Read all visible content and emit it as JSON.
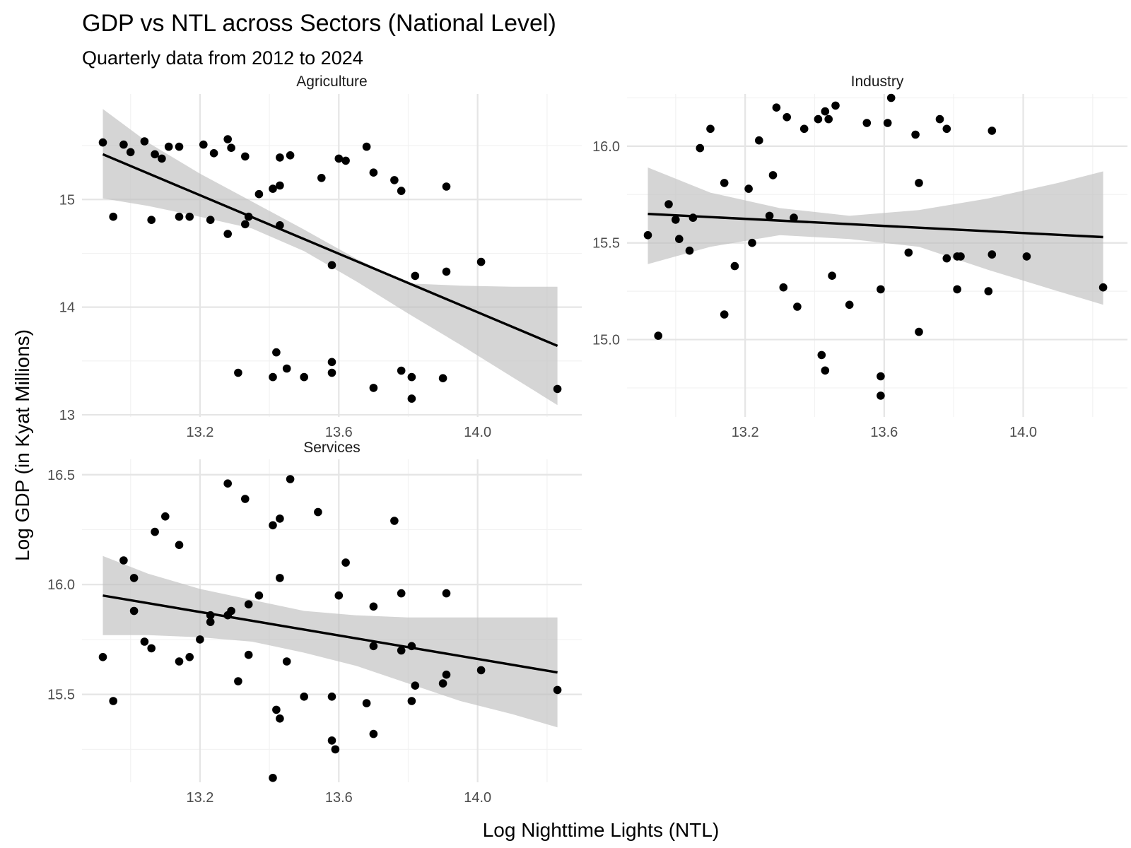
{
  "chart_data": {
    "type": "scatter",
    "title": "GDP vs NTL across Sectors (National Level)",
    "subtitle": "Quarterly data from 2012 to 2024",
    "xlabel": "Log Nighttime Lights (NTL)",
    "ylabel": "Log GDP (in Kyat Millions)",
    "grid": true,
    "xlim": [
      12.86,
      14.3
    ],
    "xticks": [
      "13.2",
      "13.6",
      "14.0"
    ],
    "panels": [
      {
        "name": "Agriculture",
        "ylim": [
          12.98,
          15.98
        ],
        "yticks": [
          "13",
          "14",
          "15"
        ],
        "fit": {
          "x0": 12.92,
          "y0": 15.42,
          "x1": 14.23,
          "y1": 13.64
        },
        "band": {
          "x": [
            12.92,
            13.05,
            13.2,
            13.35,
            13.5,
            13.65,
            13.8,
            13.95,
            14.1,
            14.23
          ],
          "upper": [
            15.84,
            15.53,
            15.24,
            14.98,
            14.72,
            14.45,
            14.22,
            14.2,
            14.19,
            14.19
          ],
          "lower": [
            15.01,
            14.94,
            14.84,
            14.73,
            14.52,
            14.24,
            13.94,
            13.65,
            13.35,
            13.09
          ]
        },
        "x": [
          12.92,
          12.98,
          13.0,
          13.04,
          13.07,
          13.09,
          13.11,
          13.14,
          13.21,
          13.24,
          13.28,
          13.29,
          13.33,
          13.37,
          13.41,
          13.43,
          13.43,
          13.46,
          13.55,
          13.6,
          13.62,
          13.68,
          13.7,
          13.76,
          13.78,
          13.91,
          12.95,
          13.06,
          13.14,
          13.17,
          13.23,
          13.28,
          13.33,
          13.34,
          13.43,
          13.58,
          13.82,
          13.91,
          14.01,
          13.31,
          13.41,
          13.42,
          13.45,
          13.5,
          13.58,
          13.58,
          13.7,
          13.78,
          13.81,
          13.9,
          13.81,
          14.23
        ],
        "y": [
          15.53,
          15.51,
          15.44,
          15.54,
          15.42,
          15.38,
          15.49,
          15.49,
          15.51,
          15.43,
          15.56,
          15.48,
          15.4,
          15.05,
          15.1,
          15.13,
          15.39,
          15.41,
          15.2,
          15.38,
          15.36,
          15.49,
          15.25,
          15.18,
          15.08,
          15.12,
          14.84,
          14.81,
          14.84,
          14.84,
          14.81,
          14.68,
          14.77,
          14.84,
          14.76,
          14.39,
          14.29,
          14.33,
          14.42,
          13.39,
          13.35,
          13.58,
          13.43,
          13.35,
          13.39,
          13.49,
          13.25,
          13.41,
          13.35,
          13.34,
          13.15,
          13.24
        ]
      },
      {
        "name": "Industry",
        "ylim": [
          14.6,
          16.27
        ],
        "yticks": [
          "15.0",
          "15.5",
          "16.0"
        ],
        "fit": {
          "x0": 12.92,
          "y0": 15.65,
          "x1": 14.23,
          "y1": 15.53
        },
        "band": {
          "x": [
            12.92,
            13.1,
            13.3,
            13.5,
            13.7,
            13.9,
            14.1,
            14.23
          ],
          "upper": [
            15.89,
            15.76,
            15.68,
            15.64,
            15.67,
            15.73,
            15.81,
            15.87
          ],
          "lower": [
            15.39,
            15.48,
            15.54,
            15.52,
            15.48,
            15.36,
            15.25,
            15.18
          ]
        },
        "x": [
          12.92,
          12.95,
          12.98,
          13.0,
          13.01,
          13.04,
          13.05,
          13.07,
          13.1,
          13.14,
          13.14,
          13.17,
          13.21,
          13.22,
          13.24,
          13.27,
          13.28,
          13.29,
          13.31,
          13.32,
          13.34,
          13.35,
          13.37,
          13.41,
          13.42,
          13.43,
          13.43,
          13.44,
          13.45,
          13.46,
          13.5,
          13.55,
          13.59,
          13.59,
          13.59,
          13.61,
          13.62,
          13.67,
          13.69,
          13.7,
          13.7,
          13.76,
          13.78,
          13.78,
          13.81,
          13.81,
          13.82,
          13.9,
          13.91,
          13.91,
          14.01,
          14.23
        ],
        "y": [
          15.54,
          15.02,
          15.7,
          15.62,
          15.52,
          15.46,
          15.63,
          15.99,
          16.09,
          15.13,
          15.81,
          15.38,
          15.78,
          15.5,
          16.03,
          15.64,
          15.85,
          16.2,
          15.27,
          16.15,
          15.63,
          15.17,
          16.09,
          16.14,
          14.92,
          14.84,
          16.18,
          16.14,
          15.33,
          16.21,
          15.18,
          16.12,
          14.81,
          15.26,
          14.71,
          16.12,
          16.25,
          15.45,
          16.06,
          15.04,
          15.81,
          16.14,
          15.42,
          16.09,
          15.43,
          15.26,
          15.43,
          15.25,
          15.44,
          16.08,
          15.43,
          15.27
        ]
      },
      {
        "name": "Services",
        "ylim": [
          15.1,
          16.57
        ],
        "yticks": [
          "15.5",
          "16.0",
          "16.5"
        ],
        "fit": {
          "x0": 12.92,
          "y0": 15.95,
          "x1": 14.23,
          "y1": 15.6
        },
        "band": {
          "x": [
            12.92,
            13.05,
            13.2,
            13.35,
            13.5,
            13.65,
            13.8,
            13.95,
            14.1,
            14.23
          ],
          "upper": [
            16.13,
            16.05,
            15.98,
            15.93,
            15.88,
            15.86,
            15.85,
            15.85,
            15.85,
            15.85
          ],
          "lower": [
            15.77,
            15.77,
            15.76,
            15.74,
            15.69,
            15.63,
            15.55,
            15.47,
            15.41,
            15.35
          ]
        },
        "x": [
          12.92,
          12.95,
          12.98,
          13.01,
          13.01,
          13.04,
          13.06,
          13.07,
          13.1,
          13.14,
          13.14,
          13.17,
          13.2,
          13.23,
          13.23,
          13.28,
          13.28,
          13.29,
          13.31,
          13.33,
          13.34,
          13.34,
          13.37,
          13.41,
          13.41,
          13.42,
          13.43,
          13.43,
          13.43,
          13.45,
          13.46,
          13.5,
          13.54,
          13.58,
          13.58,
          13.59,
          13.6,
          13.62,
          13.68,
          13.7,
          13.7,
          13.7,
          13.76,
          13.78,
          13.78,
          13.81,
          13.81,
          13.82,
          13.9,
          13.91,
          13.91,
          14.01,
          14.23
        ],
        "y": [
          15.67,
          15.47,
          16.11,
          16.03,
          15.88,
          15.74,
          15.71,
          16.24,
          16.31,
          15.65,
          16.18,
          15.67,
          15.75,
          15.83,
          15.86,
          16.46,
          15.86,
          15.88,
          15.56,
          16.39,
          15.91,
          15.68,
          15.95,
          16.27,
          15.12,
          15.43,
          15.39,
          16.3,
          16.03,
          15.65,
          16.48,
          15.49,
          16.33,
          15.29,
          15.49,
          15.25,
          15.95,
          16.1,
          15.46,
          15.32,
          15.72,
          15.9,
          16.29,
          15.96,
          15.7,
          15.72,
          15.47,
          15.54,
          15.55,
          15.59,
          15.96,
          15.61,
          15.52
        ]
      }
    ]
  }
}
